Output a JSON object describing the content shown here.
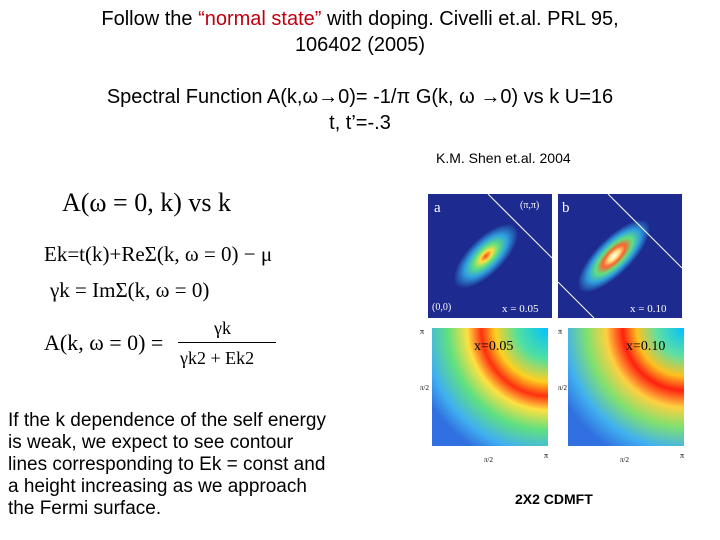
{
  "title": {
    "line1_pre": "Follow the  ",
    "line1_highlight": "“normal state”",
    "line1_post": " with doping. Civelli et.al. PRL 95,",
    "line2": "106402 (2005)"
  },
  "subtitle": {
    "line1": "Spectral Function A(k,ω→0)= -1/π G(k, ω →0) vs k   U=16",
    "line2": "t, t’=-.3"
  },
  "credit": "K.M. Shen et.al. 2004",
  "equations": {
    "eq1": "A(ω = 0, k) vs k",
    "eq2": "Ek=t(k)+ReΣ(k, ω = 0) − μ",
    "eq3": "γk = ImΣ(k, ω = 0)",
    "eq4_lhs": "A(k, ω = 0) =",
    "eq4_num": "γk",
    "eq4_den": "γk2 + Ek2"
  },
  "body_text": [
    "If the k dependence of the self energy",
    "is weak, we expect to see contour",
    "lines corresponding to Ek = const and",
    "a height increasing as we approach",
    "the Fermi surface."
  ],
  "experiment_panels": {
    "a": {
      "letter": "a",
      "corner": "(π,π)",
      "origin": "(0,0)",
      "doping": "x = 0.05"
    },
    "b": {
      "letter": "b",
      "doping": "x = 0.10"
    }
  },
  "theory_panels": {
    "left": {
      "label": "x=0.05",
      "y_top": "π",
      "y_mid": "π/2",
      "x_mid": "π/2",
      "x_right": "π"
    },
    "right": {
      "label": "x=0.10",
      "y_top": "π",
      "y_mid": "π/2",
      "x_mid": "π/2",
      "x_right": "π"
    }
  },
  "cdmft_label": "2X2 CDMFT",
  "colors": {
    "highlight": "#c0000f",
    "panel_bg": "#1d2a8f"
  }
}
